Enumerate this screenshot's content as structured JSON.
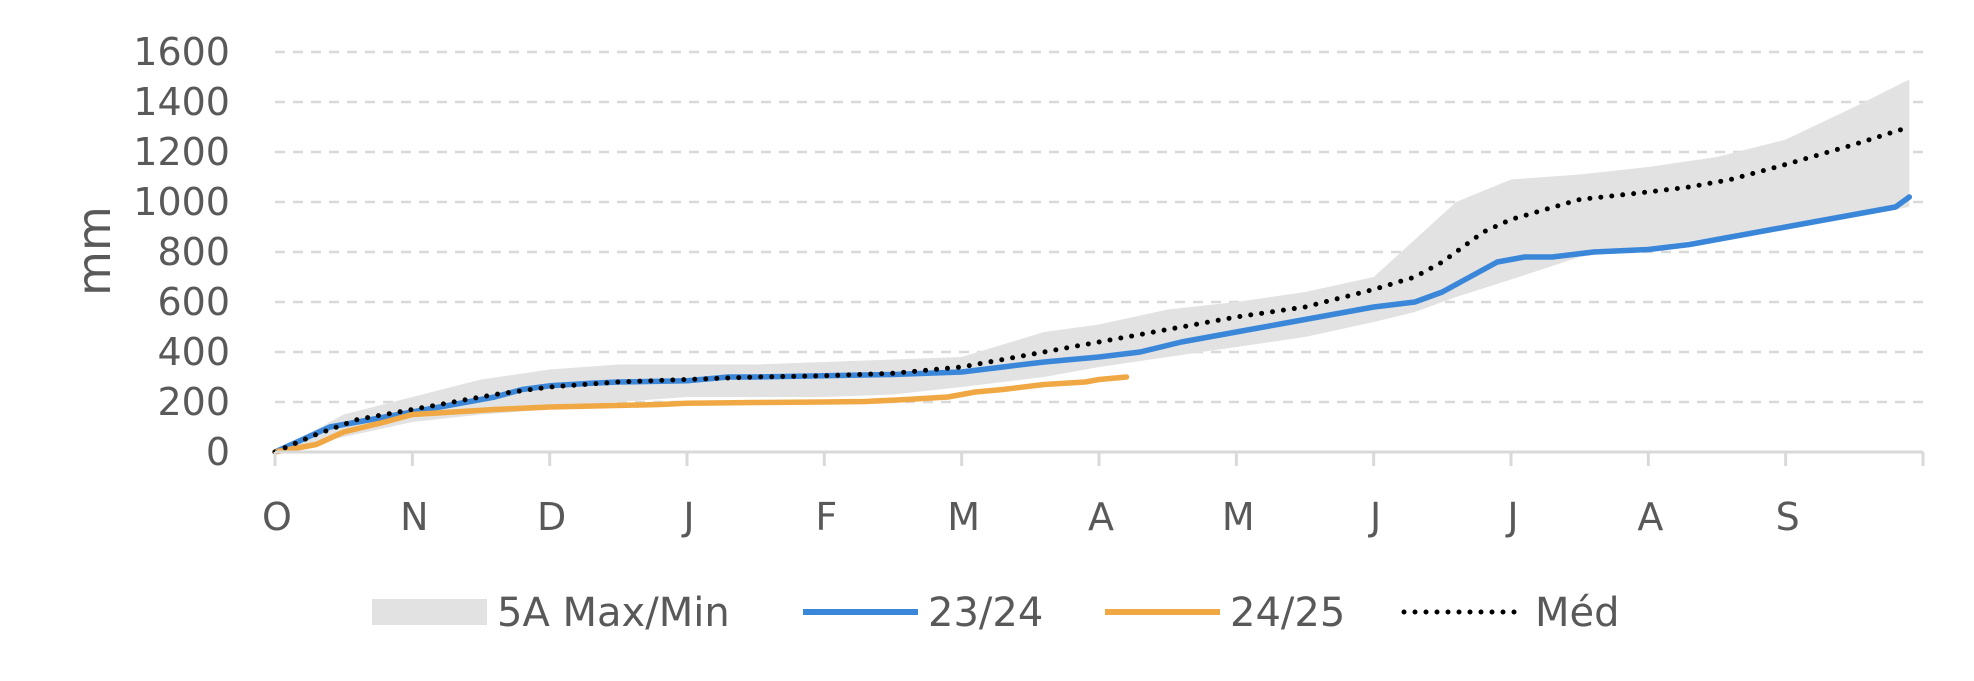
{
  "chart_data": {
    "type": "line",
    "ylabel": "mm",
    "ylim": [
      0,
      1600
    ],
    "y_ticks": [
      "0",
      "200",
      "400",
      "600",
      "800",
      "1000",
      "1200",
      "1400",
      "1600"
    ],
    "x_tick_labels": [
      "O",
      "N",
      "D",
      "J",
      "F",
      "M",
      "A",
      "M",
      "J",
      "J",
      "A",
      "S"
    ],
    "grid": "horizontal dashed",
    "legend_position": "bottom",
    "band": {
      "name": "5A Max/Min",
      "color": "#e2e2e2",
      "x": [
        0,
        0.5,
        1,
        1.5,
        2,
        2.5,
        3,
        3.5,
        4,
        4.5,
        5,
        5.3,
        5.6,
        6,
        6.5,
        7,
        7.5,
        8,
        8.3,
        8.6,
        9,
        9.5,
        10,
        10.5,
        11,
        11.5,
        11.9
      ],
      "max": [
        0,
        150,
        220,
        290,
        330,
        350,
        350,
        350,
        360,
        370,
        380,
        430,
        480,
        510,
        570,
        600,
        640,
        700,
        850,
        1000,
        1090,
        1110,
        1140,
        1180,
        1250,
        1380,
        1490
      ],
      "min": [
        0,
        60,
        120,
        150,
        170,
        200,
        220,
        220,
        220,
        230,
        260,
        280,
        300,
        340,
        380,
        420,
        460,
        520,
        560,
        620,
        690,
        780,
        820,
        860,
        900,
        940,
        980
      ]
    },
    "series": [
      {
        "name": "23/24",
        "color": "#3a86d9",
        "x": [
          0,
          0.2,
          0.4,
          0.6,
          0.8,
          1.0,
          1.3,
          1.6,
          1.8,
          2.0,
          2.3,
          2.5,
          3.0,
          3.3,
          3.5,
          4.0,
          4.5,
          5.0,
          5.3,
          5.6,
          6.0,
          6.3,
          6.6,
          7.0,
          7.3,
          7.6,
          8.0,
          8.3,
          8.5,
          8.7,
          8.9,
          9.1,
          9.3,
          9.6,
          10.0,
          10.3,
          10.6,
          11.0,
          11.5,
          11.8,
          11.9
        ],
        "values": [
          0,
          50,
          100,
          120,
          140,
          160,
          190,
          220,
          250,
          265,
          275,
          280,
          285,
          300,
          300,
          305,
          310,
          320,
          340,
          360,
          380,
          400,
          440,
          480,
          510,
          540,
          580,
          600,
          640,
          700,
          760,
          780,
          780,
          800,
          810,
          830,
          860,
          900,
          950,
          980,
          1020
        ]
      },
      {
        "name": "24/25",
        "color": "#f0a844",
        "x": [
          0,
          0.3,
          0.5,
          0.8,
          1.0,
          1.3,
          1.6,
          2.0,
          2.4,
          2.8,
          3.0,
          3.5,
          4.0,
          4.3,
          4.6,
          4.9,
          5.1,
          5.3,
          5.6,
          5.9,
          6.0,
          6.2
        ],
        "values": [
          0,
          30,
          80,
          120,
          150,
          160,
          170,
          180,
          185,
          190,
          195,
          198,
          200,
          202,
          210,
          220,
          240,
          250,
          270,
          280,
          290,
          300
        ]
      },
      {
        "name": "Méd",
        "color": "#000000",
        "dotted": true,
        "x": [
          0,
          0.3,
          0.6,
          1.0,
          1.3,
          1.6,
          2.0,
          2.5,
          3.0,
          3.5,
          4.0,
          4.5,
          5.0,
          5.3,
          5.6,
          6.0,
          6.5,
          7.0,
          7.5,
          8.0,
          8.3,
          8.5,
          8.8,
          9.0,
          9.5,
          10.0,
          10.3,
          10.6,
          11.0,
          11.5,
          11.9
        ],
        "values": [
          0,
          70,
          130,
          170,
          200,
          230,
          260,
          280,
          290,
          300,
          305,
          315,
          340,
          370,
          400,
          440,
          490,
          540,
          580,
          650,
          700,
          760,
          880,
          930,
          1010,
          1040,
          1060,
          1090,
          1150,
          1230,
          1300
        ]
      }
    ]
  }
}
